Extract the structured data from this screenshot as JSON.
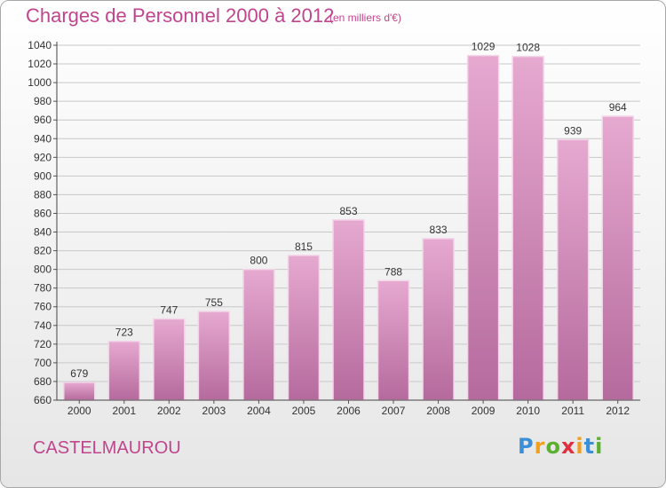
{
  "chart_data": {
    "type": "bar",
    "title": "Charges de Personnel 2000 à 2012",
    "subtitle": "(en milliers d'€)",
    "categories": [
      "2000",
      "2001",
      "2002",
      "2003",
      "2004",
      "2005",
      "2006",
      "2007",
      "2008",
      "2009",
      "2010",
      "2011",
      "2012"
    ],
    "values": [
      679,
      723,
      747,
      755,
      800,
      815,
      853,
      788,
      833,
      1029,
      1028,
      939,
      964
    ],
    "xlabel": "",
    "ylabel": "",
    "ylim": [
      660,
      1040
    ],
    "yticks": [
      660,
      680,
      700,
      720,
      740,
      760,
      780,
      800,
      820,
      840,
      860,
      880,
      900,
      920,
      940,
      960,
      980,
      1000,
      1020,
      1040
    ],
    "grid": true,
    "bar_color": "#d98cbe"
  },
  "footer": {
    "place": "CASTELMAUROU",
    "logo": {
      "letters": [
        "P",
        "r",
        "o",
        "x",
        "i",
        "t",
        "i"
      ],
      "colors": [
        "#3a8fd8",
        "#f0a020",
        "#5bb030",
        "#e03040",
        "#f0a020",
        "#3a8fd8",
        "#5bb030"
      ]
    }
  }
}
